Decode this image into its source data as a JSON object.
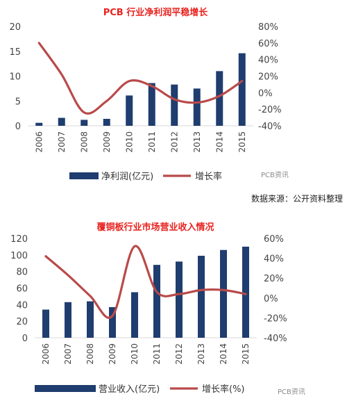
{
  "watermark": "PCB资讯",
  "source_note": "数据来源：公开资料整理",
  "chart_data": [
    {
      "type": "bar",
      "title": "PCB 行业净利润平稳增长",
      "categories": [
        "2006",
        "2007",
        "2008",
        "2009",
        "2010",
        "2011",
        "2012",
        "2013",
        "2014",
        "2015"
      ],
      "series": [
        {
          "name": "净利润(亿元)",
          "type": "bar",
          "axis": "left",
          "color": "#1f3d6e",
          "values": [
            0.6,
            1.6,
            1.2,
            1.4,
            6.1,
            8.6,
            8.3,
            7.5,
            11.0,
            14.6
          ]
        },
        {
          "name": "增长率",
          "type": "line",
          "axis": "right",
          "color": "#b94a4a",
          "values": [
            60,
            22,
            -24,
            -10,
            14,
            8,
            -8,
            -12,
            -4,
            14
          ]
        }
      ],
      "yleft": {
        "min": 0,
        "max": 20,
        "ticks": [
          "0",
          "5",
          "10",
          "15",
          "20"
        ]
      },
      "yright": {
        "min": -40,
        "max": 80,
        "ticks": [
          "-40%",
          "-20%",
          "0%",
          "20%",
          "40%",
          "60%",
          "80%"
        ]
      },
      "legend_position": "bottom"
    },
    {
      "type": "bar",
      "title": "覆铜板行业市场营业收入情况",
      "categories": [
        "2006",
        "2007",
        "2008",
        "2009",
        "2010",
        "2011",
        "2012",
        "2013",
        "2014",
        "2015"
      ],
      "series": [
        {
          "name": "营业收入(亿元)",
          "type": "bar",
          "axis": "left",
          "color": "#1f3d6e",
          "values": [
            34,
            43,
            44,
            37,
            55,
            88,
            92,
            99,
            106,
            110
          ]
        },
        {
          "name": "增长率(%)",
          "type": "line",
          "axis": "right",
          "color": "#b94a4a",
          "values": [
            42,
            23,
            2,
            -18,
            52,
            6,
            4,
            8,
            8,
            4
          ]
        }
      ],
      "yleft": {
        "min": 0,
        "max": 120,
        "ticks": [
          "0",
          "20",
          "40",
          "60",
          "80",
          "100",
          "120"
        ]
      },
      "yright": {
        "min": -40,
        "max": 60,
        "ticks": [
          "-40%",
          "-20%",
          "0%",
          "20%",
          "40%",
          "60%"
        ]
      },
      "legend_position": "bottom"
    }
  ]
}
